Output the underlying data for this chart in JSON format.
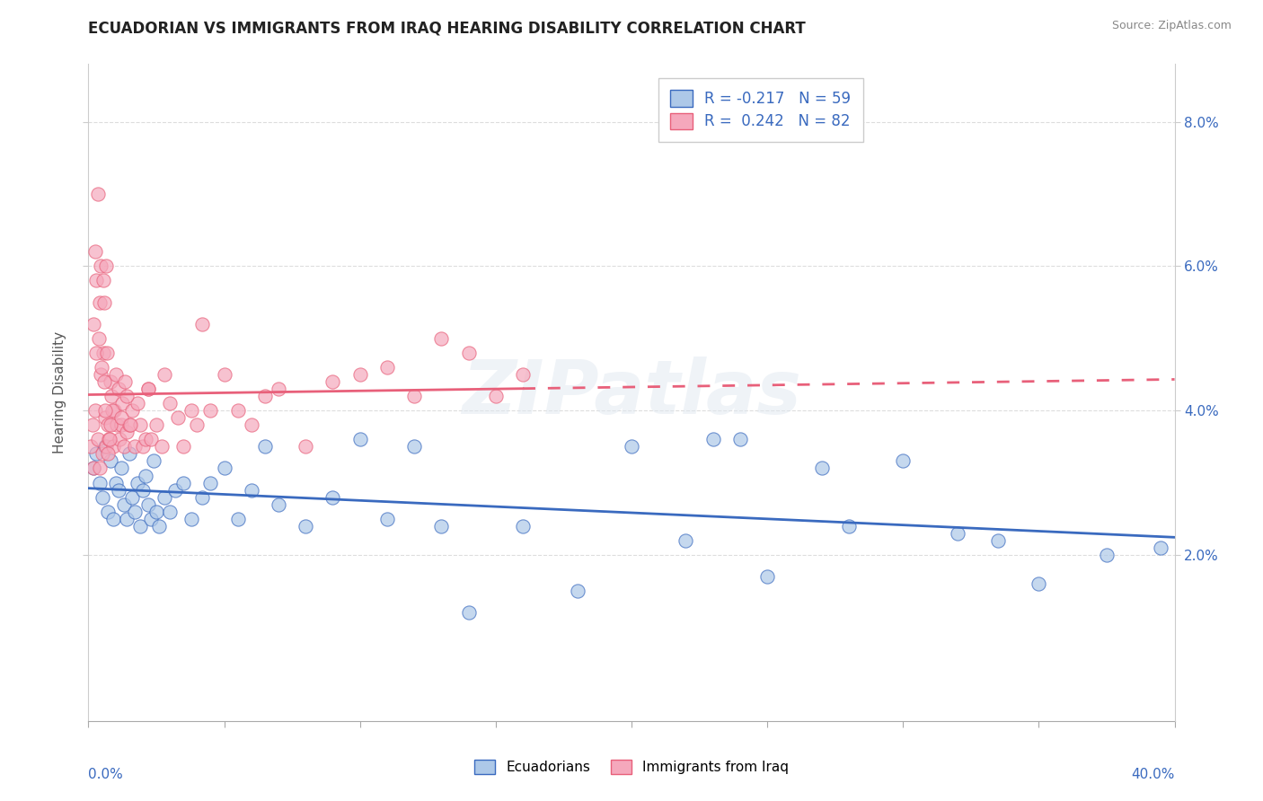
{
  "title": "ECUADORIAN VS IMMIGRANTS FROM IRAQ HEARING DISABILITY CORRELATION CHART",
  "source": "Source: ZipAtlas.com",
  "ylabel": "Hearing Disability",
  "y_ticks": [
    2.0,
    4.0,
    6.0,
    8.0
  ],
  "y_tick_labels": [
    "2.0%",
    "4.0%",
    "6.0%",
    "8.0%"
  ],
  "xmin": 0.0,
  "xmax": 40.0,
  "ymin": -0.3,
  "ymax": 8.8,
  "blue_R": -0.217,
  "blue_N": 59,
  "pink_R": 0.242,
  "pink_N": 82,
  "blue_color": "#adc8e8",
  "pink_color": "#f5a8bc",
  "blue_line_color": "#3a6abf",
  "pink_line_color": "#e8607a",
  "legend_blue_label": "Ecuadorians",
  "legend_pink_label": "Immigrants from Iraq",
  "watermark": "ZIPatlas",
  "blue_scatter_x": [
    0.2,
    0.3,
    0.4,
    0.5,
    0.6,
    0.7,
    0.8,
    0.9,
    1.0,
    1.1,
    1.2,
    1.3,
    1.4,
    1.5,
    1.6,
    1.7,
    1.8,
    1.9,
    2.0,
    2.1,
    2.2,
    2.3,
    2.4,
    2.5,
    2.6,
    2.8,
    3.0,
    3.2,
    3.5,
    3.8,
    4.2,
    4.5,
    5.0,
    5.5,
    6.0,
    6.5,
    7.0,
    8.0,
    9.0,
    10.0,
    11.0,
    12.0,
    13.0,
    14.0,
    16.0,
    18.0,
    20.0,
    22.0,
    23.0,
    24.0,
    25.0,
    27.0,
    28.0,
    30.0,
    32.0,
    33.5,
    35.0,
    37.5,
    39.5
  ],
  "blue_scatter_y": [
    3.2,
    3.4,
    3.0,
    2.8,
    3.5,
    2.6,
    3.3,
    2.5,
    3.0,
    2.9,
    3.2,
    2.7,
    2.5,
    3.4,
    2.8,
    2.6,
    3.0,
    2.4,
    2.9,
    3.1,
    2.7,
    2.5,
    3.3,
    2.6,
    2.4,
    2.8,
    2.6,
    2.9,
    3.0,
    2.5,
    2.8,
    3.0,
    3.2,
    2.5,
    2.9,
    3.5,
    2.7,
    2.4,
    2.8,
    3.6,
    2.5,
    3.5,
    2.4,
    1.2,
    2.4,
    1.5,
    3.5,
    2.2,
    3.6,
    3.6,
    1.7,
    3.2,
    2.4,
    3.3,
    2.3,
    2.2,
    1.6,
    2.0,
    2.1
  ],
  "pink_scatter_x": [
    0.1,
    0.15,
    0.2,
    0.25,
    0.3,
    0.35,
    0.4,
    0.45,
    0.5,
    0.55,
    0.6,
    0.65,
    0.7,
    0.75,
    0.8,
    0.85,
    0.9,
    0.95,
    1.0,
    1.05,
    1.1,
    1.15,
    1.2,
    1.25,
    1.3,
    1.4,
    1.5,
    1.6,
    1.7,
    1.8,
    1.9,
    2.0,
    2.1,
    2.2,
    2.3,
    2.5,
    2.7,
    3.0,
    3.3,
    3.5,
    4.0,
    4.5,
    5.0,
    5.5,
    6.0,
    6.5,
    7.0,
    8.0,
    9.0,
    10.0,
    11.0,
    12.0,
    13.0,
    14.0,
    15.0,
    16.0,
    0.35,
    0.25,
    0.45,
    0.55,
    0.65,
    2.8,
    0.18,
    0.28,
    0.38,
    0.48,
    0.58,
    0.68,
    0.78,
    0.88,
    0.72,
    1.35,
    1.42,
    0.82,
    1.22,
    2.2,
    3.8,
    1.55,
    0.58,
    4.2,
    0.42,
    0.62
  ],
  "pink_scatter_y": [
    3.5,
    3.8,
    3.2,
    4.0,
    5.8,
    3.6,
    5.5,
    4.5,
    3.4,
    4.8,
    3.9,
    3.5,
    3.8,
    3.6,
    4.4,
    4.2,
    3.5,
    4.0,
    4.5,
    3.8,
    4.3,
    3.6,
    3.8,
    4.1,
    3.5,
    3.7,
    3.8,
    4.0,
    3.5,
    4.1,
    3.8,
    3.5,
    3.6,
    4.3,
    3.6,
    3.8,
    3.5,
    4.1,
    3.9,
    3.5,
    3.8,
    4.0,
    4.5,
    4.0,
    3.8,
    4.2,
    4.3,
    3.5,
    4.4,
    4.5,
    4.6,
    4.2,
    5.0,
    4.8,
    4.2,
    4.5,
    7.0,
    6.2,
    6.0,
    5.8,
    6.0,
    4.5,
    5.2,
    4.8,
    5.0,
    4.6,
    4.4,
    4.8,
    3.6,
    4.0,
    3.4,
    4.4,
    4.2,
    3.8,
    3.9,
    4.3,
    4.0,
    3.8,
    5.5,
    5.2,
    3.2,
    4.0
  ]
}
